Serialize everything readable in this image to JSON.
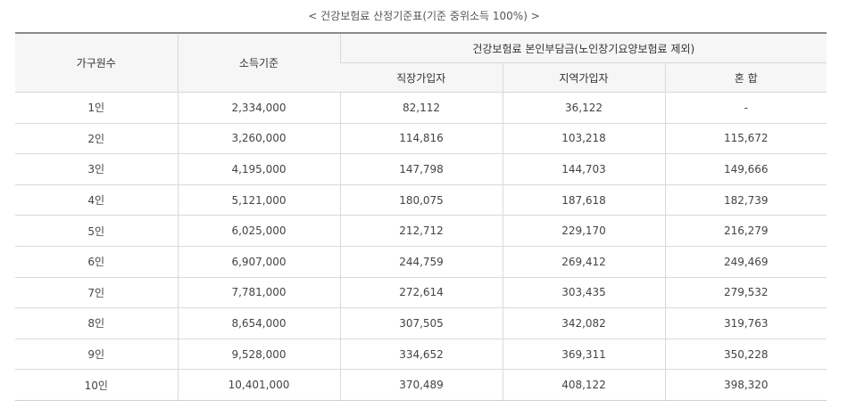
{
  "caption": "< 건강보험료 산정기준표(기준 중위소득 100%) >",
  "headers": {
    "household": "가구원수",
    "income": "소득기준",
    "group": "건강보험료 본인부담금(노인장기요양보험료 제외)",
    "employee": "직장가입자",
    "regional": "지역가입자",
    "mixed": "혼 합"
  },
  "rows": [
    {
      "household": "1인",
      "income": "2,334,000",
      "employee": "82,112",
      "regional": "36,122",
      "mixed": "-"
    },
    {
      "household": "2인",
      "income": "3,260,000",
      "employee": "114,816",
      "regional": "103,218",
      "mixed": "115,672"
    },
    {
      "household": "3인",
      "income": "4,195,000",
      "employee": "147,798",
      "regional": "144,703",
      "mixed": "149,666"
    },
    {
      "household": "4인",
      "income": "5,121,000",
      "employee": "180,075",
      "regional": "187,618",
      "mixed": "182,739"
    },
    {
      "household": "5인",
      "income": "6,025,000",
      "employee": "212,712",
      "regional": "229,170",
      "mixed": "216,279"
    },
    {
      "household": "6인",
      "income": "6,907,000",
      "employee": "244,759",
      "regional": "269,412",
      "mixed": "249,469"
    },
    {
      "household": "7인",
      "income": "7,781,000",
      "employee": "272,614",
      "regional": "303,435",
      "mixed": "279,532"
    },
    {
      "household": "8인",
      "income": "8,654,000",
      "employee": "307,505",
      "regional": "342,082",
      "mixed": "319,763"
    },
    {
      "household": "9인",
      "income": "9,528,000",
      "employee": "334,652",
      "regional": "369,311",
      "mixed": "350,228"
    },
    {
      "household": "10인",
      "income": "10,401,000",
      "employee": "370,489",
      "regional": "408,122",
      "mixed": "398,320"
    }
  ]
}
